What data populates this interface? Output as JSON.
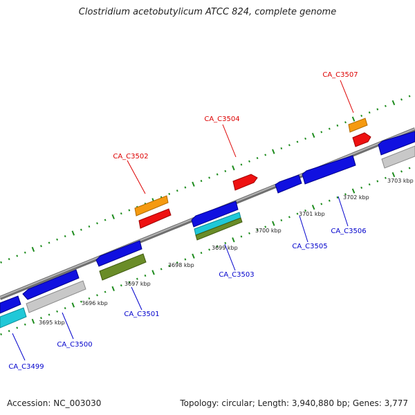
{
  "title": "Clostridium acetobutylicum ATCC 824, complete genome",
  "footer": {
    "accession": "Accession: NC_003030",
    "summary": "Topology: circular; Length: 3,940,880 bp; Genes: 3,777"
  },
  "colors": {
    "backbone": "#8c8c8c",
    "ticks": "#228b22",
    "label_forward": "#dd0000",
    "label_reverse": "#0000cc",
    "gene_blue": "#1010e0",
    "gene_gray": "#c8c8c8",
    "gene_cyan": "#20c8d8",
    "gene_olive": "#6a8c28",
    "gene_orange": "#f59a10",
    "gene_red": "#ee1111"
  },
  "axis_labels": [
    "3695 kbp",
    "3696 kbp",
    "3697 kbp",
    "3698 kbp",
    "3699 kbp",
    "3700 kbp",
    "3701 kbp",
    "3702 kbp",
    "3703 kbp"
  ],
  "gene_labels": {
    "forward": [
      "CA_C3502",
      "CA_C3504",
      "CA_C3507"
    ],
    "reverse": [
      "CA_C3499",
      "CA_C3500",
      "CA_C3501",
      "CA_C3503",
      "CA_C3505",
      "CA_C3506"
    ]
  }
}
